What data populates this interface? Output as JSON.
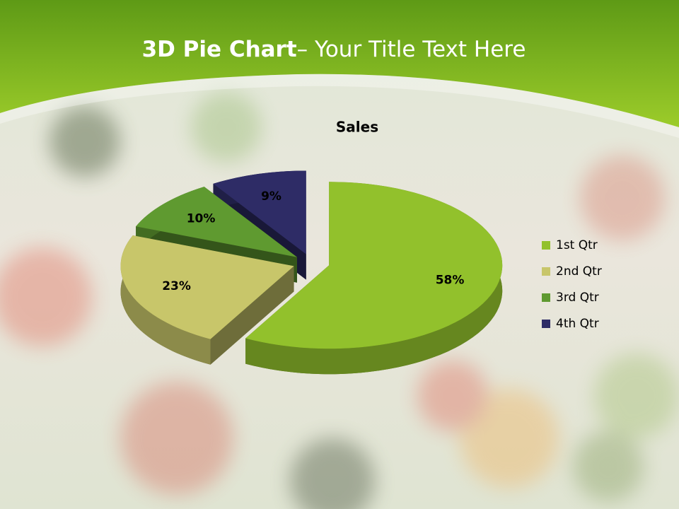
{
  "slide_title": {
    "bold": "3D Pie Chart",
    "rest": "– Your Title Text Here"
  },
  "chart_data": {
    "type": "pie",
    "title": "Sales",
    "categories": [
      "1st Qtr",
      "2nd Qtr",
      "3rd Qtr",
      "4th Qtr"
    ],
    "values": [
      58,
      23,
      10,
      9
    ],
    "value_labels": [
      "58%",
      "23%",
      "10%",
      "9%"
    ],
    "colors": [
      "#92c12c",
      "#c8c66a",
      "#5f9a30",
      "#2e2c66"
    ],
    "legend": "right"
  }
}
